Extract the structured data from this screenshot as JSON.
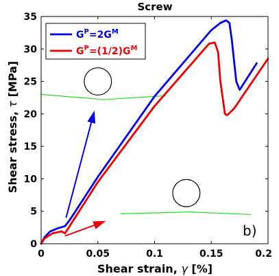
{
  "chart_data": {
    "type": "line",
    "title": "Screw",
    "xlabel_main": "Shear strain, ",
    "xlabel_symbol": "γ",
    "xlabel_unit": " [%]",
    "ylabel_main": "Shear stress, ",
    "ylabel_symbol": "τ",
    "ylabel_unit": " [MPa]",
    "xlim": [
      0,
      0.2
    ],
    "ylim": [
      0,
      35
    ],
    "x_ticks": [
      0,
      0.05,
      0.1,
      0.15,
      0.2
    ],
    "x_tick_labels": [
      "0",
      "0.05",
      "0.1",
      "0.15",
      "0.2"
    ],
    "y_ticks": [
      0,
      5,
      10,
      15,
      20,
      25,
      30,
      35
    ],
    "y_tick_labels": [
      "0",
      "5",
      "10",
      "15",
      "20",
      "25",
      "30",
      "35"
    ],
    "grid": false,
    "legend_position": "top-left",
    "panel_label": "b)",
    "series": [
      {
        "name": "G^P=2G^M",
        "color": "#0000ee",
        "x": [
          0,
          0.003,
          0.008,
          0.015,
          0.021,
          0.025,
          0.05,
          0.1,
          0.15,
          0.158,
          0.163,
          0.166,
          0.168,
          0.172,
          0.175,
          0.19
        ],
        "y": [
          0,
          1.0,
          1.9,
          2.4,
          2.7,
          3.6,
          10.3,
          22.7,
          32.9,
          34.0,
          34.4,
          34.0,
          31.5,
          25.0,
          23.7,
          27.8
        ]
      },
      {
        "name": "G^P=(1/2)G^M",
        "color": "#ee0000",
        "x": [
          0,
          0.003,
          0.01,
          0.018,
          0.021,
          0.024,
          0.05,
          0.1,
          0.148,
          0.153,
          0.156,
          0.158,
          0.162,
          0.164,
          0.17,
          0.2
        ],
        "y": [
          0,
          0.8,
          1.6,
          1.9,
          1.6,
          2.4,
          9.5,
          21.2,
          30.8,
          31.0,
          29.5,
          25.0,
          20.0,
          19.8,
          20.8,
          28.5
        ]
      }
    ],
    "arrows": [
      {
        "color": "#0000ee",
        "from": [
          0.022,
          4.0
        ],
        "to": [
          0.047,
          20.5
        ]
      },
      {
        "color": "#ee0000",
        "from": [
          0.021,
          1.2
        ],
        "to": [
          0.057,
          3.5
        ]
      }
    ],
    "insets": [
      {
        "line_x": [
          0,
          0.055,
          0.11
        ],
        "line_y": [
          23.0,
          22.2,
          22.8
        ],
        "circle_center": [
          0.05,
          25.0
        ]
      },
      {
        "line_x": [
          0.07,
          0.13,
          0.185
        ],
        "line_y": [
          4.6,
          4.9,
          4.5
        ],
        "circle_center": [
          0.128,
          7.8
        ]
      }
    ]
  }
}
